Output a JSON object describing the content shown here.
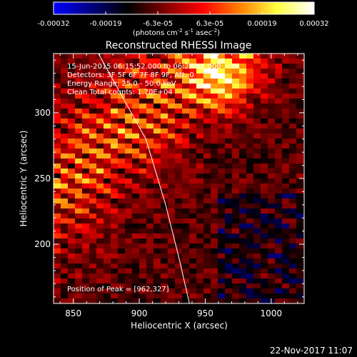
{
  "chart_data": {
    "type": "heatmap",
    "title": "Reconstructed RHESSI Image",
    "xlabel": "Heliocentric X (arcsec)",
    "ylabel": "Heliocentric Y (arcsec)",
    "xlim": [
      835,
      1025
    ],
    "ylim": [
      155,
      345
    ],
    "xticks": [
      850,
      900,
      950,
      1000
    ],
    "yticks": [
      200,
      250,
      300
    ],
    "colorbar": {
      "range": [
        -0.00032,
        0.00032
      ],
      "tick_labels": [
        "-0.00032",
        "-0.00019",
        "-6.3e-05",
        "6.3e-05",
        "0.00019",
        "0.00032"
      ],
      "units_main": "(photons cm",
      "units_sup1": "-2",
      "units_mid1": " s",
      "units_sup2": "-1",
      "units_mid2": " asec",
      "units_sup3": "-2",
      "units_end": ")",
      "colormap": [
        "#0000ff",
        "#000080",
        "#000000",
        "#800000",
        "#ff0000",
        "#ff8000",
        "#ffff40",
        "#ffffff"
      ]
    },
    "annotations": {
      "time_range": "15-Jun-2015 06:15:52.000 to 06:23:52.000",
      "detectors": "Detectors: 3F 5F 6F 7F 8F 9F, Att: 0",
      "energy": "Energy Range: 25.0 - 50.0 keV",
      "clean": "Clean     Total counts: 1.70E+04",
      "peak": "Position of Peak = [962,327]"
    },
    "peak": {
      "x": 962,
      "y": 327
    },
    "limb_arc": [
      [
        869,
        345
      ],
      [
        905,
        280
      ],
      [
        920,
        230
      ],
      [
        930,
        190
      ],
      [
        938,
        155
      ]
    ]
  },
  "footer": {
    "timestamp": "22-Nov-2017 11:07"
  }
}
